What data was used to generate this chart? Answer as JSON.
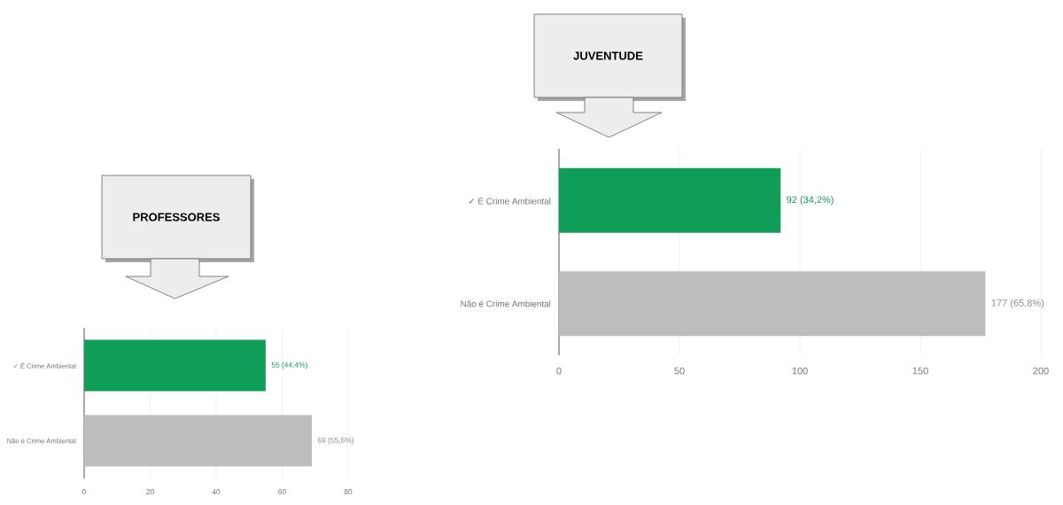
{
  "chart_data": [
    {
      "type": "bar",
      "orientation": "horizontal",
      "title": "PROFESSORES",
      "categories": [
        "✓ É Crime Ambiental",
        "Não é Crime Ambiental"
      ],
      "values": [
        55,
        69
      ],
      "colors": [
        "#0f9d58",
        "#bdbdbd"
      ],
      "value_labels": [
        "55 (44,4%)",
        "69 (55,6%)"
      ],
      "xlim": [
        0,
        80
      ],
      "xticks": [
        0,
        20,
        40,
        60,
        80
      ],
      "grid": "x"
    },
    {
      "type": "bar",
      "orientation": "horizontal",
      "title": "JUVENTUDE",
      "categories": [
        "✓ É Crime Ambiental",
        "Não é Crime Ambiental"
      ],
      "values": [
        92,
        177
      ],
      "colors": [
        "#0f9d58",
        "#bdbdbd"
      ],
      "value_labels": [
        "92 (34,2%)",
        "177 (65,8%)"
      ],
      "xlim": [
        0,
        200
      ],
      "xticks": [
        0,
        50,
        100,
        150,
        200
      ],
      "grid": "x"
    }
  ]
}
